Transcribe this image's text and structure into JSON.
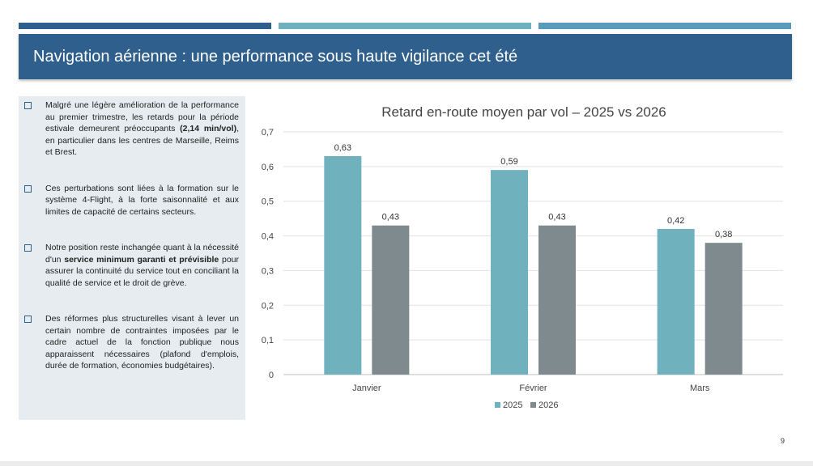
{
  "slide": {
    "title": "Navigation aérienne : une performance sous haute vigilance cet été",
    "page_number": "9",
    "bullets": [
      {
        "parts": [
          {
            "t": "Malgré une légère amélioration de la performance au premier trimestre, les retards pour la période estivale demeurent préoccupants ",
            "b": false
          },
          {
            "t": "(2,14 min/vol)",
            "b": true
          },
          {
            "t": ", en particulier dans les centres de Marseille, Reims et Brest.",
            "b": false
          }
        ]
      },
      {
        "parts": [
          {
            "t": "Ces perturbations sont liées à la formation sur le système 4-Flight, à la forte saisonnalité et aux limites de capacité de certains secteurs.",
            "b": false
          }
        ]
      },
      {
        "parts": [
          {
            "t": "Notre position reste inchangée quant à la nécessité d'un ",
            "b": false
          },
          {
            "t": "service minimum garanti et prévisible",
            "b": true
          },
          {
            "t": " pour assurer la continuité du service tout en conciliant la qualité de service et le droit de grève.",
            "b": false
          }
        ]
      },
      {
        "parts": [
          {
            "t": "Des réformes plus structurelles visant à lever un certain nombre de contraintes imposées par le cadre actuel de la fonction publique nous apparaissent nécessaires (plafond d'emplois, durée de formation, économies budgétaires).",
            "b": false
          }
        ]
      }
    ]
  },
  "chart_data": {
    "type": "bar",
    "title": "Retard en-route moyen par vol – 2025 vs 2026",
    "categories": [
      "Janvier",
      "Février",
      "Mars"
    ],
    "series": [
      {
        "name": "2025",
        "values": [
          0.63,
          0.59,
          0.42
        ],
        "color": "#6fb1bd"
      },
      {
        "name": "2026",
        "values": [
          0.43,
          0.43,
          0.38
        ],
        "color": "#7f8a8e"
      }
    ],
    "value_labels": [
      [
        "0,63",
        "0,59",
        "0,42"
      ],
      [
        "0,43",
        "0,43",
        "0,38"
      ]
    ],
    "yticks": [
      0,
      0.1,
      0.2,
      0.3,
      0.4,
      0.5,
      0.6,
      0.7
    ],
    "ytick_labels": [
      "0",
      "0,1",
      "0,2",
      "0,3",
      "0,4",
      "0,5",
      "0,6",
      "0,7"
    ],
    "ylim": [
      0,
      0.7
    ],
    "grid": true,
    "legend": "bottom-center"
  },
  "colors": {
    "primary": "#2f5f8c",
    "accent": "#6fb1bd",
    "gray": "#7f8a8e",
    "panel": "#e6ecef"
  },
  "icons": {
    "bullet": "hollow-square-bullet-icon"
  }
}
